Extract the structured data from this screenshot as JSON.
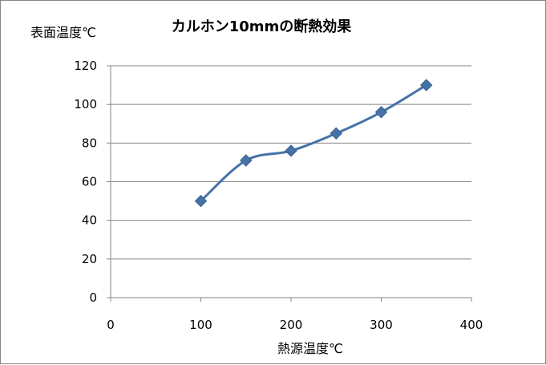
{
  "chart_data": {
    "type": "line",
    "title": "カルホン10mmの断熱効果",
    "xlabel": "熱源温度℃",
    "ylabel": "表面温度℃",
    "xlim": [
      0,
      400
    ],
    "ylim": [
      0,
      120
    ],
    "x_ticks": [
      "0",
      "100",
      "200",
      "300",
      "400"
    ],
    "y_ticks": [
      "0",
      "20",
      "40",
      "60",
      "80",
      "100",
      "120"
    ],
    "grid": "horizontal",
    "legend": "none",
    "smooth": true,
    "marker": "diamond",
    "series": [
      {
        "x": [
          100,
          150,
          200,
          250,
          300,
          350
        ],
        "y": [
          50,
          71,
          76,
          85,
          96,
          110
        ],
        "color": "#4572A7"
      }
    ]
  }
}
